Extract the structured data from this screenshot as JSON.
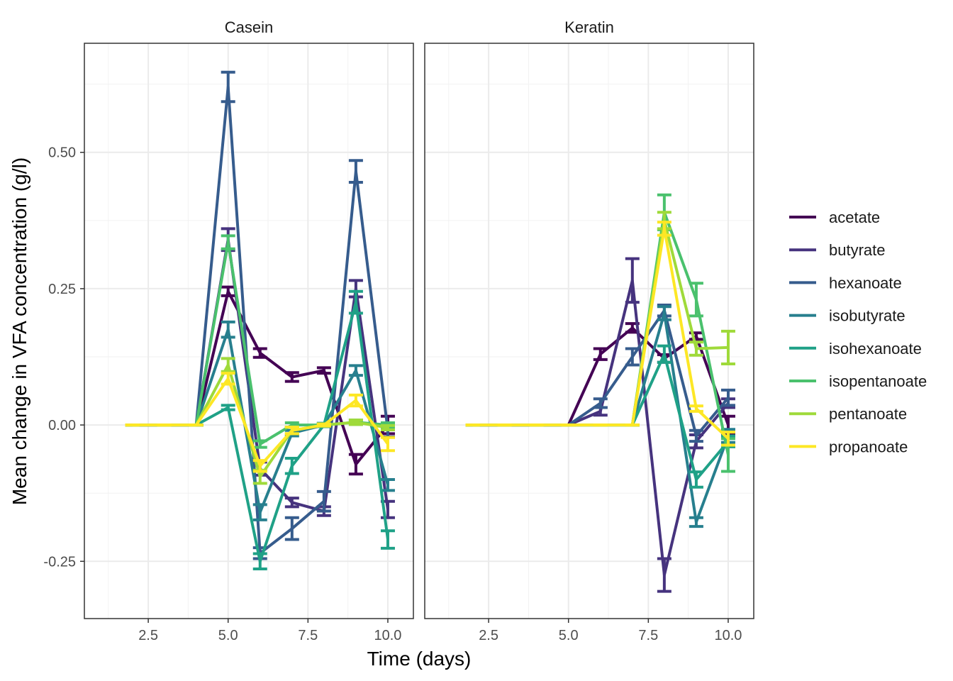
{
  "chart_data": {
    "type": "line",
    "xlabel": "Time (days)",
    "ylabel": "Mean change in VFA concentration (g/l)",
    "xlim": [
      0.5,
      10.8
    ],
    "ylim": [
      -0.355,
      0.7
    ],
    "xticks": [
      2.5,
      5.0,
      7.5,
      10.0
    ],
    "xtick_labels": [
      "2.5",
      "5.0",
      "7.5",
      "10.0"
    ],
    "yticks": [
      -0.25,
      0.0,
      0.25,
      0.5
    ],
    "ytick_labels": [
      "-0.25",
      "0.00",
      "0.25",
      "0.50"
    ],
    "grid": true,
    "legend_position": "right",
    "error_bars": true,
    "facets": [
      "Casein",
      "Keratin"
    ],
    "series_order": [
      "acetate",
      "butyrate",
      "hexanoate",
      "isobutyrate",
      "isohexanoate",
      "isopentanoate",
      "pentanoate",
      "propanoate"
    ],
    "colors": {
      "acetate": "#440154",
      "butyrate": "#46337E",
      "hexanoate": "#365C8D",
      "isobutyrate": "#277F8E",
      "isohexanoate": "#1FA187",
      "isopentanoate": "#4AC16D",
      "pentanoate": "#9FDA3A",
      "propanoate": "#FDE725"
    },
    "panels": [
      {
        "name": "Casein",
        "series": [
          {
            "name": "acetate",
            "x": [
              2,
              3,
              4,
              5,
              6,
              7,
              8,
              9,
              10
            ],
            "y": [
              0,
              0,
              0,
              0.245,
              0.132,
              0.088,
              0.1,
              -0.072,
              0
            ],
            "err": [
              0,
              0,
              0,
              0.008,
              0.008,
              0.008,
              0.005,
              0.018,
              0.016
            ]
          },
          {
            "name": "butyrate",
            "x": [
              2,
              3,
              4,
              5,
              6,
              7,
              8,
              9,
              10
            ],
            "y": [
              0,
              0,
              0,
              0.34,
              -0.08,
              -0.142,
              -0.158,
              0.25,
              -0.155
            ],
            "err": [
              0,
              0,
              0,
              0.02,
              0.012,
              0.008,
              0.008,
              0.015,
              0.015
            ]
          },
          {
            "name": "hexanoate",
            "x": [
              2,
              3,
              4,
              5,
              6,
              7,
              8,
              9,
              10
            ],
            "y": [
              0,
              0,
              0,
              0.62,
              -0.235,
              -0.19,
              -0.14,
              0.465,
              -0.01
            ],
            "err": [
              0,
              0,
              0,
              0.027,
              0.01,
              0.02,
              0.018,
              0.02,
              0.012
            ]
          },
          {
            "name": "isobutyrate",
            "x": [
              2,
              3,
              4,
              5,
              6,
              7,
              8,
              9,
              10
            ],
            "y": [
              0,
              0,
              0,
              0.175,
              -0.16,
              -0.015,
              0,
              0.1,
              -0.11
            ],
            "err": [
              0,
              0,
              0,
              0.014,
              0.014,
              0.005,
              0.003,
              0.009,
              0.01
            ]
          },
          {
            "name": "isohexanoate",
            "x": [
              2,
              3,
              4,
              5,
              6,
              7,
              8,
              9,
              10
            ],
            "y": [
              0,
              0,
              0,
              0.032,
              -0.25,
              -0.075,
              0,
              0.225,
              -0.21
            ],
            "err": [
              0,
              0,
              0,
              0.004,
              0.014,
              0.014,
              0.003,
              0.02,
              0.016
            ]
          },
          {
            "name": "isopentanoate",
            "x": [
              2,
              3,
              4,
              5,
              6,
              7,
              8,
              9,
              10
            ],
            "y": [
              0,
              0,
              0,
              0.335,
              -0.035,
              0,
              0,
              0.005,
              0
            ],
            "err": [
              0,
              0,
              0,
              0.012,
              0.006,
              0.004,
              0.002,
              0.004,
              0.004
            ]
          },
          {
            "name": "pentanoate",
            "x": [
              2,
              3,
              4,
              5,
              6,
              7,
              8,
              9,
              10
            ],
            "y": [
              0,
              0,
              0,
              0.11,
              -0.095,
              -0.01,
              0,
              0.005,
              -0.005
            ],
            "err": [
              0,
              0,
              0,
              0.012,
              0.012,
              0.006,
              0.002,
              0.004,
              0.004
            ]
          },
          {
            "name": "propanoate",
            "x": [
              2,
              3,
              4,
              5,
              6,
              7,
              8,
              9,
              10
            ],
            "y": [
              0,
              0,
              0,
              0.085,
              -0.075,
              -0.01,
              0,
              0.045,
              -0.035
            ],
            "err": [
              0,
              0,
              0,
              0.01,
              0.01,
              0.006,
              0.002,
              0.01,
              0.012
            ]
          }
        ]
      },
      {
        "name": "Keratin",
        "series": [
          {
            "name": "acetate",
            "x": [
              2,
              3,
              4,
              5,
              6,
              7,
              8,
              9,
              10
            ],
            "y": [
              0,
              0,
              0,
              0,
              0.13,
              0.178,
              0.122,
              0.163,
              0
            ],
            "err": [
              0,
              0,
              0,
              0,
              0.01,
              0.008,
              0.007,
              0.006,
              0.016
            ]
          },
          {
            "name": "butyrate",
            "x": [
              2,
              3,
              4,
              5,
              6,
              7,
              8,
              9,
              10
            ],
            "y": [
              0,
              0,
              0,
              0,
              0.025,
              0.265,
              -0.275,
              -0.03,
              0.04
            ],
            "err": [
              0,
              0,
              0,
              0,
              0.007,
              0.04,
              0.03,
              0.012,
              0.008
            ]
          },
          {
            "name": "hexanoate",
            "x": [
              2,
              3,
              4,
              5,
              6,
              7,
              8,
              9,
              10
            ],
            "y": [
              0,
              0,
              0,
              0,
              0.04,
              0.125,
              0.21,
              -0.02,
              0.05
            ],
            "err": [
              0,
              0,
              0,
              0,
              0.008,
              0.015,
              0.01,
              0.01,
              0.014
            ]
          },
          {
            "name": "isobutyrate",
            "x": [
              2,
              3,
              4,
              5,
              6,
              7,
              8,
              9,
              10
            ],
            "y": [
              0,
              0,
              0,
              0,
              0,
              0,
              0.205,
              -0.178,
              -0.02
            ],
            "err": [
              0,
              0,
              0,
              0,
              0,
              0,
              0.012,
              0.008,
              0.012
            ]
          },
          {
            "name": "isohexanoate",
            "x": [
              2,
              3,
              4,
              5,
              6,
              7,
              8,
              9,
              10
            ],
            "y": [
              0,
              0,
              0,
              0,
              0,
              0,
              0.13,
              -0.1,
              -0.03
            ],
            "err": [
              0,
              0,
              0,
              0,
              0,
              0,
              0.015,
              0.014,
              0.01
            ]
          },
          {
            "name": "isopentanoate",
            "x": [
              2,
              3,
              4,
              5,
              6,
              7,
              8,
              9,
              10
            ],
            "y": [
              0,
              0,
              0,
              0,
              0,
              0,
              0.39,
              0.23,
              -0.055
            ],
            "err": [
              0,
              0,
              0,
              0,
              0,
              0,
              0.032,
              0.03,
              0.03
            ]
          },
          {
            "name": "pentanoate",
            "x": [
              2,
              3,
              4,
              5,
              6,
              7,
              8,
              9,
              10
            ],
            "y": [
              0,
              0,
              0,
              0,
              0,
              0,
              0.375,
              0.14,
              0.142
            ],
            "err": [
              0,
              0,
              0,
              0,
              0,
              0,
              0.015,
              0.012,
              0.03
            ]
          },
          {
            "name": "propanoate",
            "x": [
              2,
              3,
              4,
              5,
              6,
              7,
              8,
              9,
              10
            ],
            "y": [
              0,
              0,
              0,
              0,
              0,
              0,
              0.36,
              0.03,
              -0.025
            ],
            "err": [
              0,
              0,
              0,
              0,
              0,
              0,
              0.012,
              0.005,
              0.012
            ]
          }
        ]
      }
    ]
  }
}
